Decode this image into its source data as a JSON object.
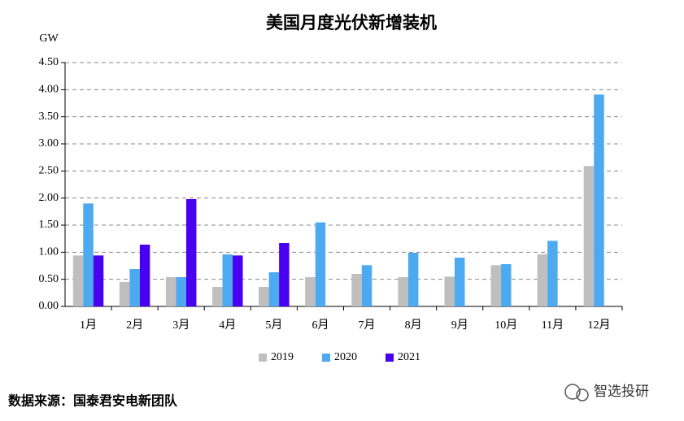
{
  "chart_data": {
    "type": "bar",
    "title": "美国月度光伏新增装机",
    "y_unit": "GW",
    "categories": [
      "1月",
      "2月",
      "3月",
      "4月",
      "5月",
      "6月",
      "7月",
      "8月",
      "9月",
      "10月",
      "11月",
      "12月"
    ],
    "series": [
      {
        "name": "2019",
        "color": "#bfbfbf",
        "values": [
          0.94,
          0.45,
          0.54,
          0.36,
          0.36,
          0.54,
          0.6,
          0.54,
          0.55,
          0.76,
          0.96,
          2.59
        ]
      },
      {
        "name": "2020",
        "color": "#4eaaf0",
        "values": [
          1.9,
          0.69,
          0.54,
          0.96,
          0.63,
          1.55,
          0.76,
          0.99,
          0.9,
          0.78,
          1.21,
          3.91
        ]
      },
      {
        "name": "2021",
        "color": "#4a00f0",
        "values": [
          0.94,
          1.14,
          1.98,
          0.94,
          1.17,
          null,
          null,
          null,
          null,
          null,
          null,
          null
        ]
      }
    ],
    "ylim": [
      0,
      4.5
    ],
    "yticks": [
      {
        "value": 0,
        "label": "0.00"
      },
      {
        "value": 0.5,
        "label": "0.50"
      },
      {
        "value": 1,
        "label": "1.00"
      },
      {
        "value": 1.5,
        "label": "1.50"
      },
      {
        "value": 2,
        "label": "2.00"
      },
      {
        "value": 2.5,
        "label": "2.50"
      },
      {
        "value": 3,
        "label": "3.00"
      },
      {
        "value": 3.5,
        "label": "3.50"
      },
      {
        "value": 4,
        "label": "4.00"
      },
      {
        "value": 4.5,
        "label": "4.50"
      }
    ],
    "grid": true,
    "legend": "bottom"
  },
  "source": "数据来源：国泰君安电新团队",
  "watermark": "智选投研"
}
